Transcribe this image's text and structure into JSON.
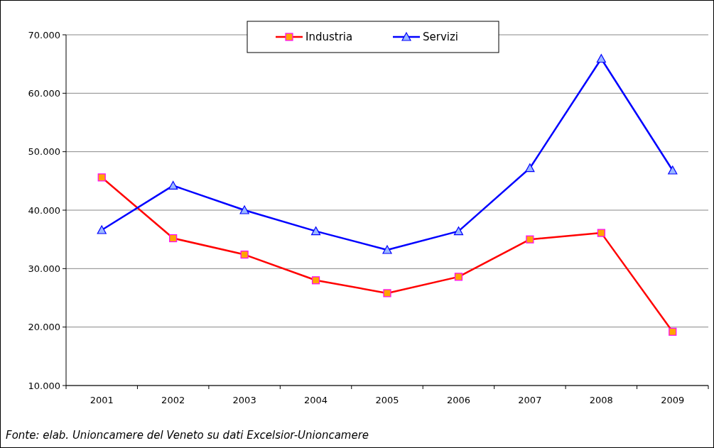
{
  "chart_data": {
    "type": "line",
    "categories": [
      "2001",
      "2002",
      "2003",
      "2004",
      "2005",
      "2006",
      "2007",
      "2008",
      "2009"
    ],
    "series": [
      {
        "name": "Industria",
        "color": "#ff0000",
        "marker": "square",
        "values": [
          45600,
          35200,
          32400,
          28000,
          25800,
          28600,
          35000,
          36100,
          19200
        ]
      },
      {
        "name": "Servizi",
        "color": "#0000ff",
        "marker": "triangle",
        "values": [
          36600,
          44200,
          40000,
          36400,
          33200,
          36400,
          47200,
          65900,
          46800
        ]
      }
    ],
    "ylim": [
      10000,
      70000
    ],
    "yticks": [
      {
        "value": 10000,
        "label": "10.000"
      },
      {
        "value": 20000,
        "label": "20.000"
      },
      {
        "value": 30000,
        "label": "30.000"
      },
      {
        "value": 40000,
        "label": "40.000"
      },
      {
        "value": 50000,
        "label": "50.000"
      },
      {
        "value": 60000,
        "label": "60.000"
      },
      {
        "value": 70000,
        "label": "70.000"
      }
    ],
    "grid": "y",
    "legend": "top",
    "annotations": [
      "Fonte: elab. Unioncamere del Veneto su dati Excelsior-Unioncamere"
    ]
  }
}
